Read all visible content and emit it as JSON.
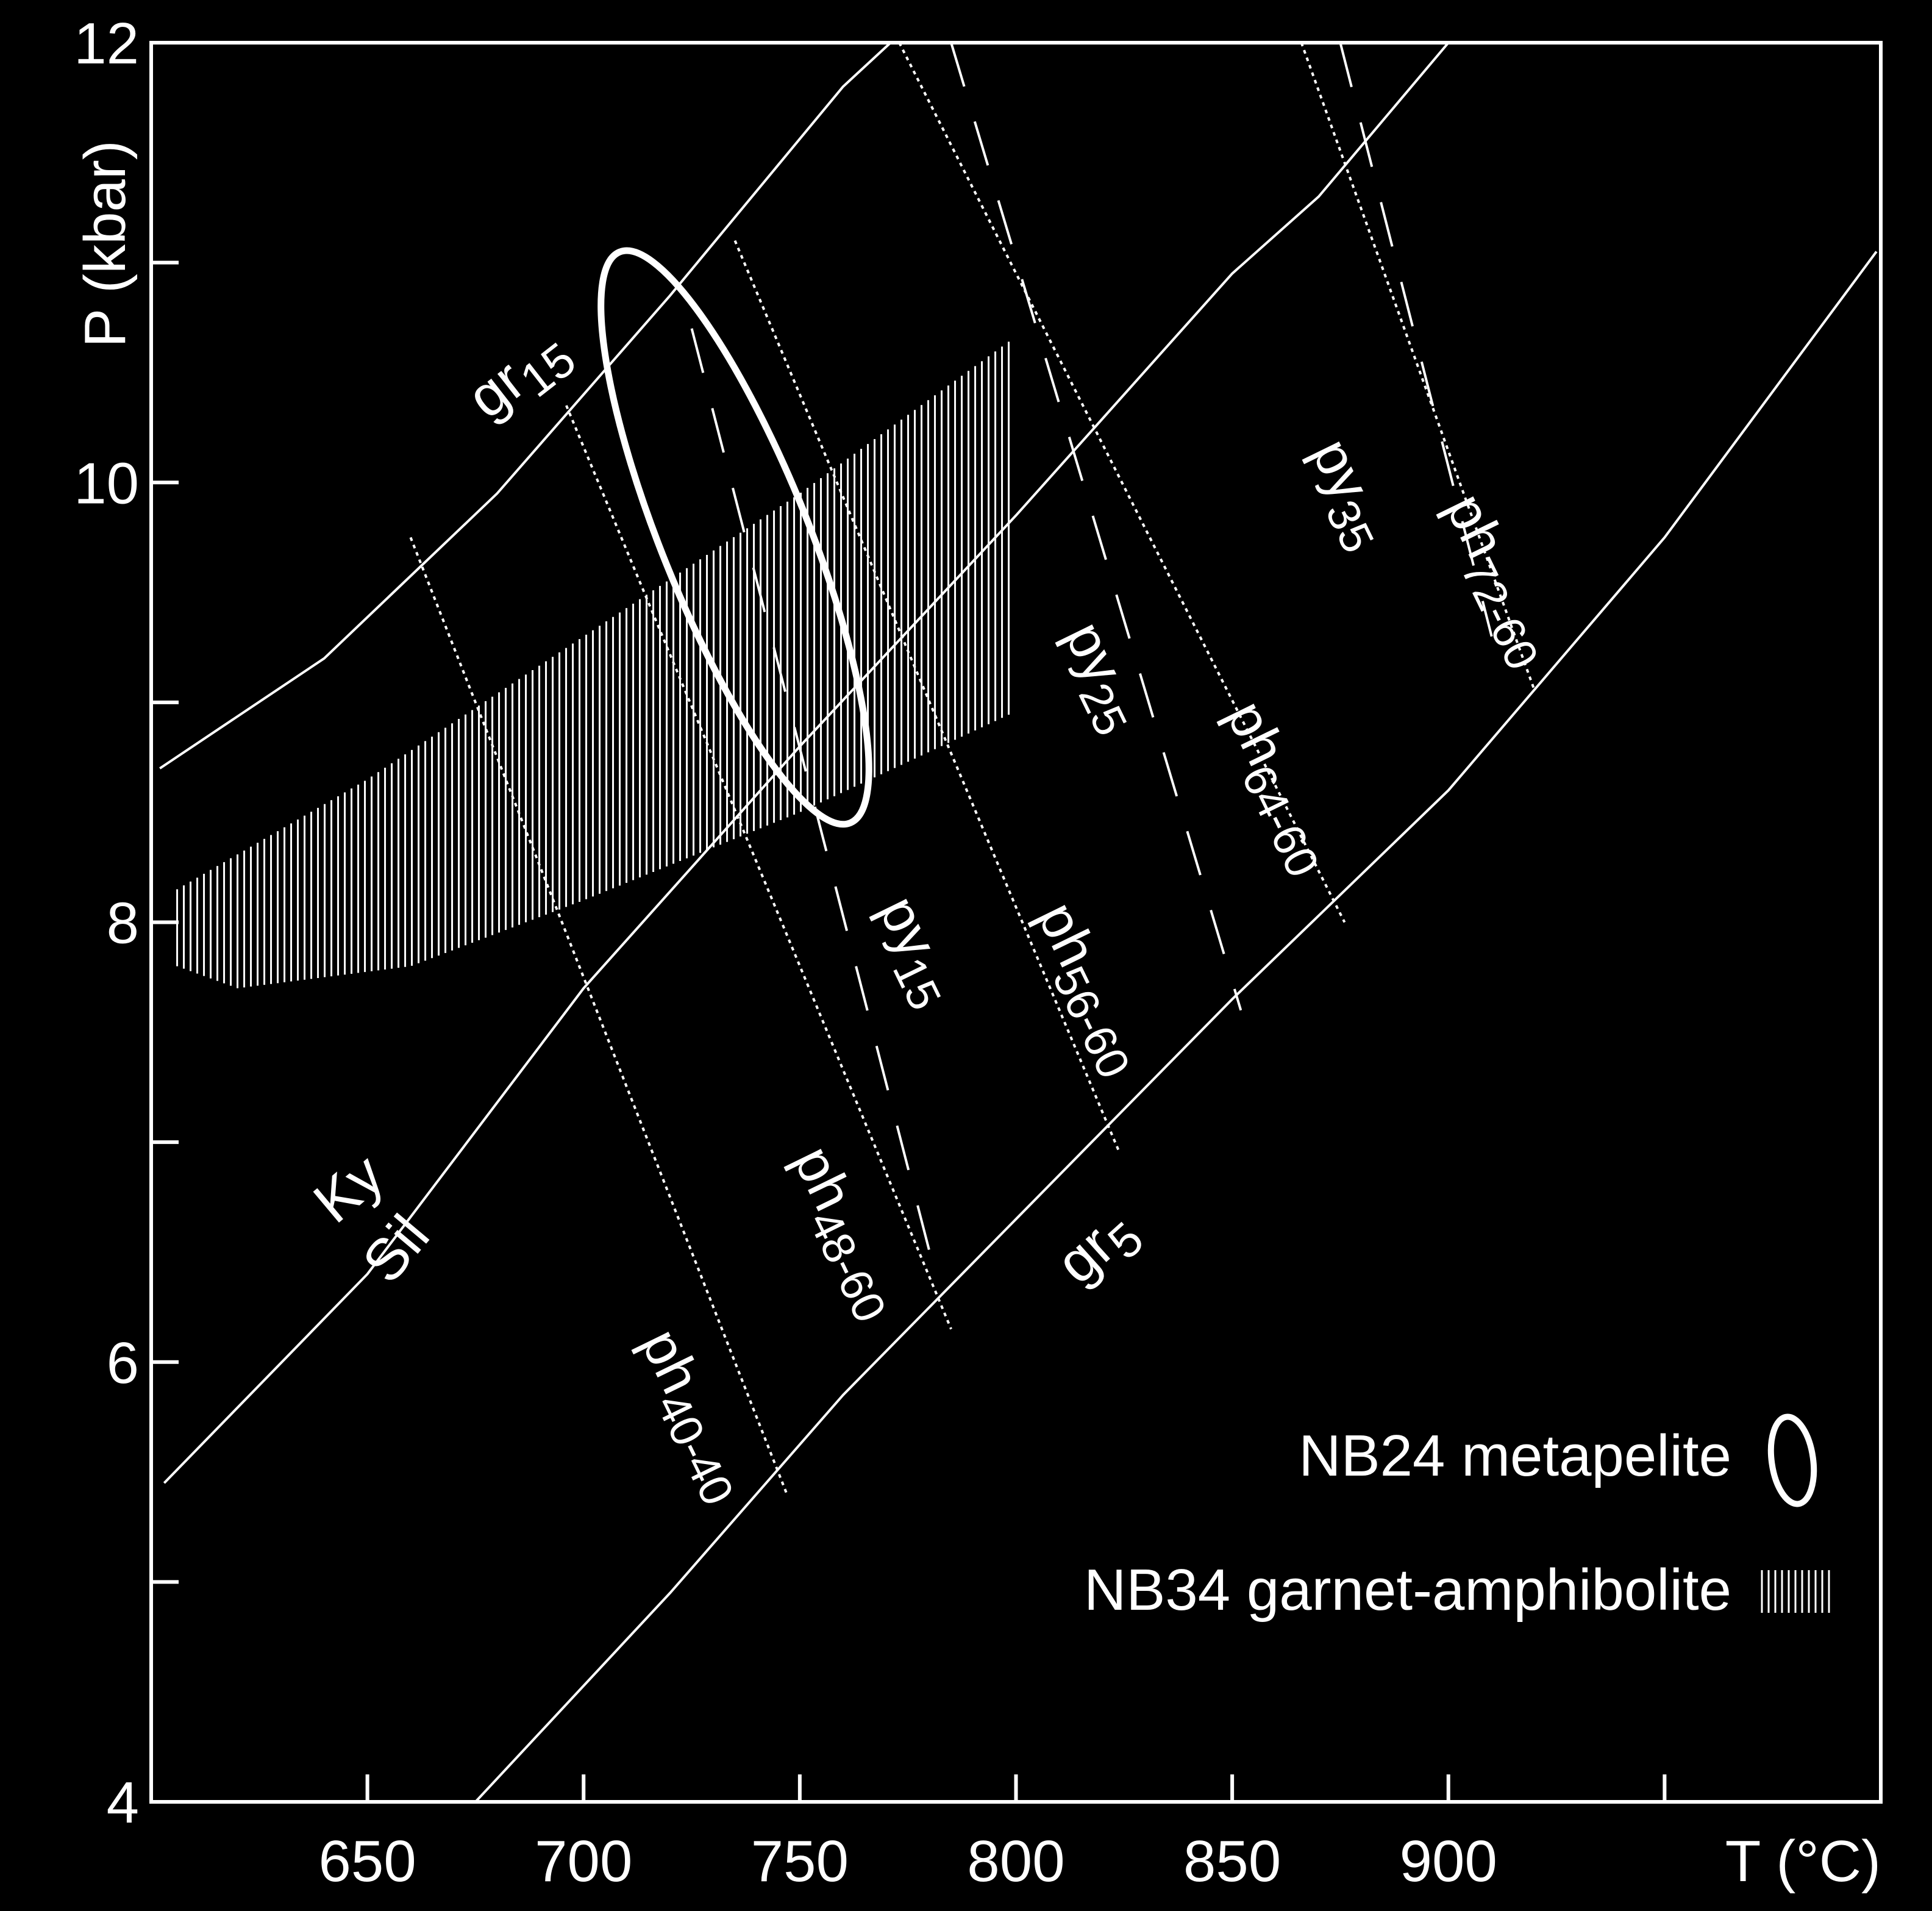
{
  "chart_data": {
    "type": "line",
    "xlabel": "T (°C)",
    "ylabel": "P (kbar)",
    "xlim": [
      600,
      1000
    ],
    "ylim": [
      4,
      12
    ],
    "x_ticks": [
      650,
      700,
      750,
      800,
      850,
      900
    ],
    "x_minor_ticks": [
      950
    ],
    "y_ticks": [
      4,
      6,
      8,
      10,
      12
    ],
    "y_minor_ticks": [
      5,
      7,
      9,
      11
    ],
    "colors": {
      "background": "#000000",
      "foreground": "#ffffff"
    },
    "curves": [
      {
        "id": "gr15",
        "label": "gr",
        "subscript": "15",
        "style": "solid",
        "points": [
          [
            602,
            8.7
          ],
          [
            640,
            9.2
          ],
          [
            680,
            9.95
          ],
          [
            720,
            10.85
          ],
          [
            760,
            11.8
          ],
          [
            771,
            12
          ]
        ]
      },
      {
        "id": "kysil",
        "style": "solid",
        "points": [
          [
            603,
            5.45
          ],
          [
            650,
            6.4
          ],
          [
            700,
            7.7
          ],
          [
            750,
            8.8
          ],
          [
            800,
            9.85
          ],
          [
            850,
            10.95
          ],
          [
            870,
            11.3
          ],
          [
            900,
            12
          ]
        ]
      },
      {
        "id": "gr5",
        "label": "gr",
        "subscript": "5",
        "style": "solid",
        "points": [
          [
            675,
            4
          ],
          [
            720,
            4.95
          ],
          [
            760,
            5.85
          ],
          [
            800,
            6.65
          ],
          [
            850,
            7.65
          ],
          [
            900,
            8.6
          ],
          [
            950,
            9.75
          ],
          [
            999,
            11.05
          ]
        ]
      },
      {
        "id": "ph40-40",
        "style": "dotted",
        "points": [
          [
            660,
            9.75
          ],
          [
            747,
            5.4
          ]
        ]
      },
      {
        "id": "ph48-60",
        "style": "dotted",
        "points": [
          [
            696,
            10.35
          ],
          [
            785,
            6.15
          ]
        ]
      },
      {
        "id": "ph56-60",
        "style": "dotted",
        "points": [
          [
            735,
            11.1
          ],
          [
            824,
            6.95
          ]
        ]
      },
      {
        "id": "ph64-60",
        "style": "dotted",
        "points": [
          [
            773,
            12
          ],
          [
            876,
            8
          ]
        ]
      },
      {
        "id": "ph72-60",
        "style": "dotted",
        "points": [
          [
            866,
            12
          ],
          [
            920,
            9.05
          ]
        ]
      },
      {
        "id": "py15",
        "style": "dashed",
        "points": [
          [
            725,
            10.7
          ],
          [
            782,
            6.35
          ]
        ]
      },
      {
        "id": "py25",
        "style": "dashed",
        "points": [
          [
            785,
            12
          ],
          [
            852,
            7.6
          ]
        ]
      },
      {
        "id": "py35",
        "style": "dashed",
        "points": [
          [
            875,
            12
          ],
          [
            910,
            9.3
          ]
        ]
      }
    ],
    "labels": [
      {
        "id": "gr15",
        "text": "gr",
        "sub": "15"
      },
      {
        "id": "gr5",
        "text": "gr",
        "sub": "5"
      },
      {
        "id": "ky",
        "text": "Ky"
      },
      {
        "id": "sil",
        "text": "Sil"
      },
      {
        "id": "ph40-40",
        "text": "ph",
        "sub": "40-40"
      },
      {
        "id": "ph48-60",
        "text": "ph",
        "sub": "48-60"
      },
      {
        "id": "ph56-60",
        "text": "ph",
        "sub": "56-60"
      },
      {
        "id": "ph64-60",
        "text": "ph",
        "sub": "64-60"
      },
      {
        "id": "ph72-60",
        "text": "ph",
        "sub": "72-60"
      },
      {
        "id": "py15",
        "text": "py",
        "sub": "15"
      },
      {
        "id": "py25",
        "text": "py",
        "sub": "25"
      },
      {
        "id": "py35",
        "text": "py",
        "sub": "35"
      }
    ],
    "regions": [
      {
        "id": "nb24",
        "kind": "ellipse",
        "legend": "NB24 metapelite",
        "center": [
          735,
          9.75
        ],
        "semi_axes_T": 17,
        "semi_axes_P": 1.4,
        "rotation_deg": 22
      },
      {
        "id": "nb34",
        "kind": "hatched",
        "legend": "NB34 garnet-amphibolite",
        "T_range": [
          606,
          799
        ],
        "upper": [
          [
            606,
            8.15
          ],
          [
            650,
            8.65
          ],
          [
            700,
            9.3
          ],
          [
            750,
            9.95
          ],
          [
            799,
            10.65
          ]
        ],
        "lower": [
          [
            606,
            7.8
          ],
          [
            620,
            7.7
          ],
          [
            660,
            7.8
          ],
          [
            700,
            8.1
          ],
          [
            750,
            8.5
          ],
          [
            799,
            8.95
          ]
        ]
      }
    ],
    "legend": [
      {
        "id": "nb24",
        "label": "NB24 metapelite",
        "symbol": "ellipse"
      },
      {
        "id": "nb34",
        "label": "NB34 garnet-amphibolite",
        "symbol": "hatch"
      }
    ]
  }
}
